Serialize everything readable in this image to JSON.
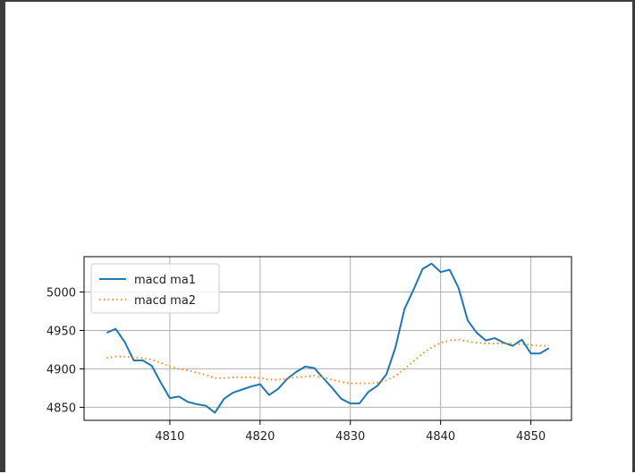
{
  "chart_data": {
    "type": "line",
    "title": "",
    "xlabel": "",
    "ylabel": "",
    "xlim": [
      4800.5,
      4854.5
    ],
    "ylim": [
      4833,
      5046
    ],
    "xticks": [
      4810,
      4820,
      4830,
      4840,
      4850
    ],
    "yticks": [
      4850,
      4900,
      4950,
      5000
    ],
    "grid": true,
    "legend_position": "upper-left",
    "x": [
      4803,
      4804,
      4805,
      4806,
      4807,
      4808,
      4809,
      4810,
      4811,
      4812,
      4813,
      4814,
      4815,
      4816,
      4817,
      4818,
      4819,
      4820,
      4821,
      4822,
      4823,
      4824,
      4825,
      4826,
      4827,
      4828,
      4829,
      4830,
      4831,
      4832,
      4833,
      4834,
      4835,
      4836,
      4837,
      4838,
      4839,
      4840,
      4841,
      4842,
      4843,
      4844,
      4845,
      4846,
      4847,
      4848,
      4849,
      4850,
      4851,
      4852
    ],
    "series": [
      {
        "name": "macd ma1",
        "color": "#1f77b4",
        "style": "solid",
        "values": [
          4947,
          4952,
          4935,
          4911,
          4911,
          4904,
          4882,
          4862,
          4864,
          4857,
          4854,
          4852,
          4843,
          4861,
          4869,
          4873,
          4877,
          4880,
          4866,
          4874,
          4887,
          4896,
          4903,
          4901,
          4888,
          4875,
          4861,
          4855,
          4855,
          4870,
          4878,
          4893,
          4928,
          4978,
          5003,
          5030,
          5037,
          5026,
          5029,
          5005,
          4963,
          4947,
          4937,
          4940,
          4934,
          4930,
          4938,
          4920,
          4920,
          4927
        ]
      },
      {
        "name": "macd ma2",
        "color": "#ff7f0e",
        "style": "dotted",
        "values": [
          4914,
          4916,
          4916,
          4915,
          4914,
          4912,
          4908,
          4903,
          4900,
          4898,
          4895,
          4892,
          4888,
          4888,
          4889,
          4889,
          4889,
          4888,
          4886,
          4886,
          4887,
          4889,
          4890,
          4891,
          4889,
          4886,
          4883,
          4881,
          4881,
          4881,
          4882,
          4885,
          4891,
          4900,
          4910,
          4920,
          4928,
          4934,
          4937,
          4938,
          4936,
          4934,
          4933,
          4933,
          4933,
          4933,
          4932,
          4931,
          4930,
          4930
        ]
      }
    ]
  }
}
